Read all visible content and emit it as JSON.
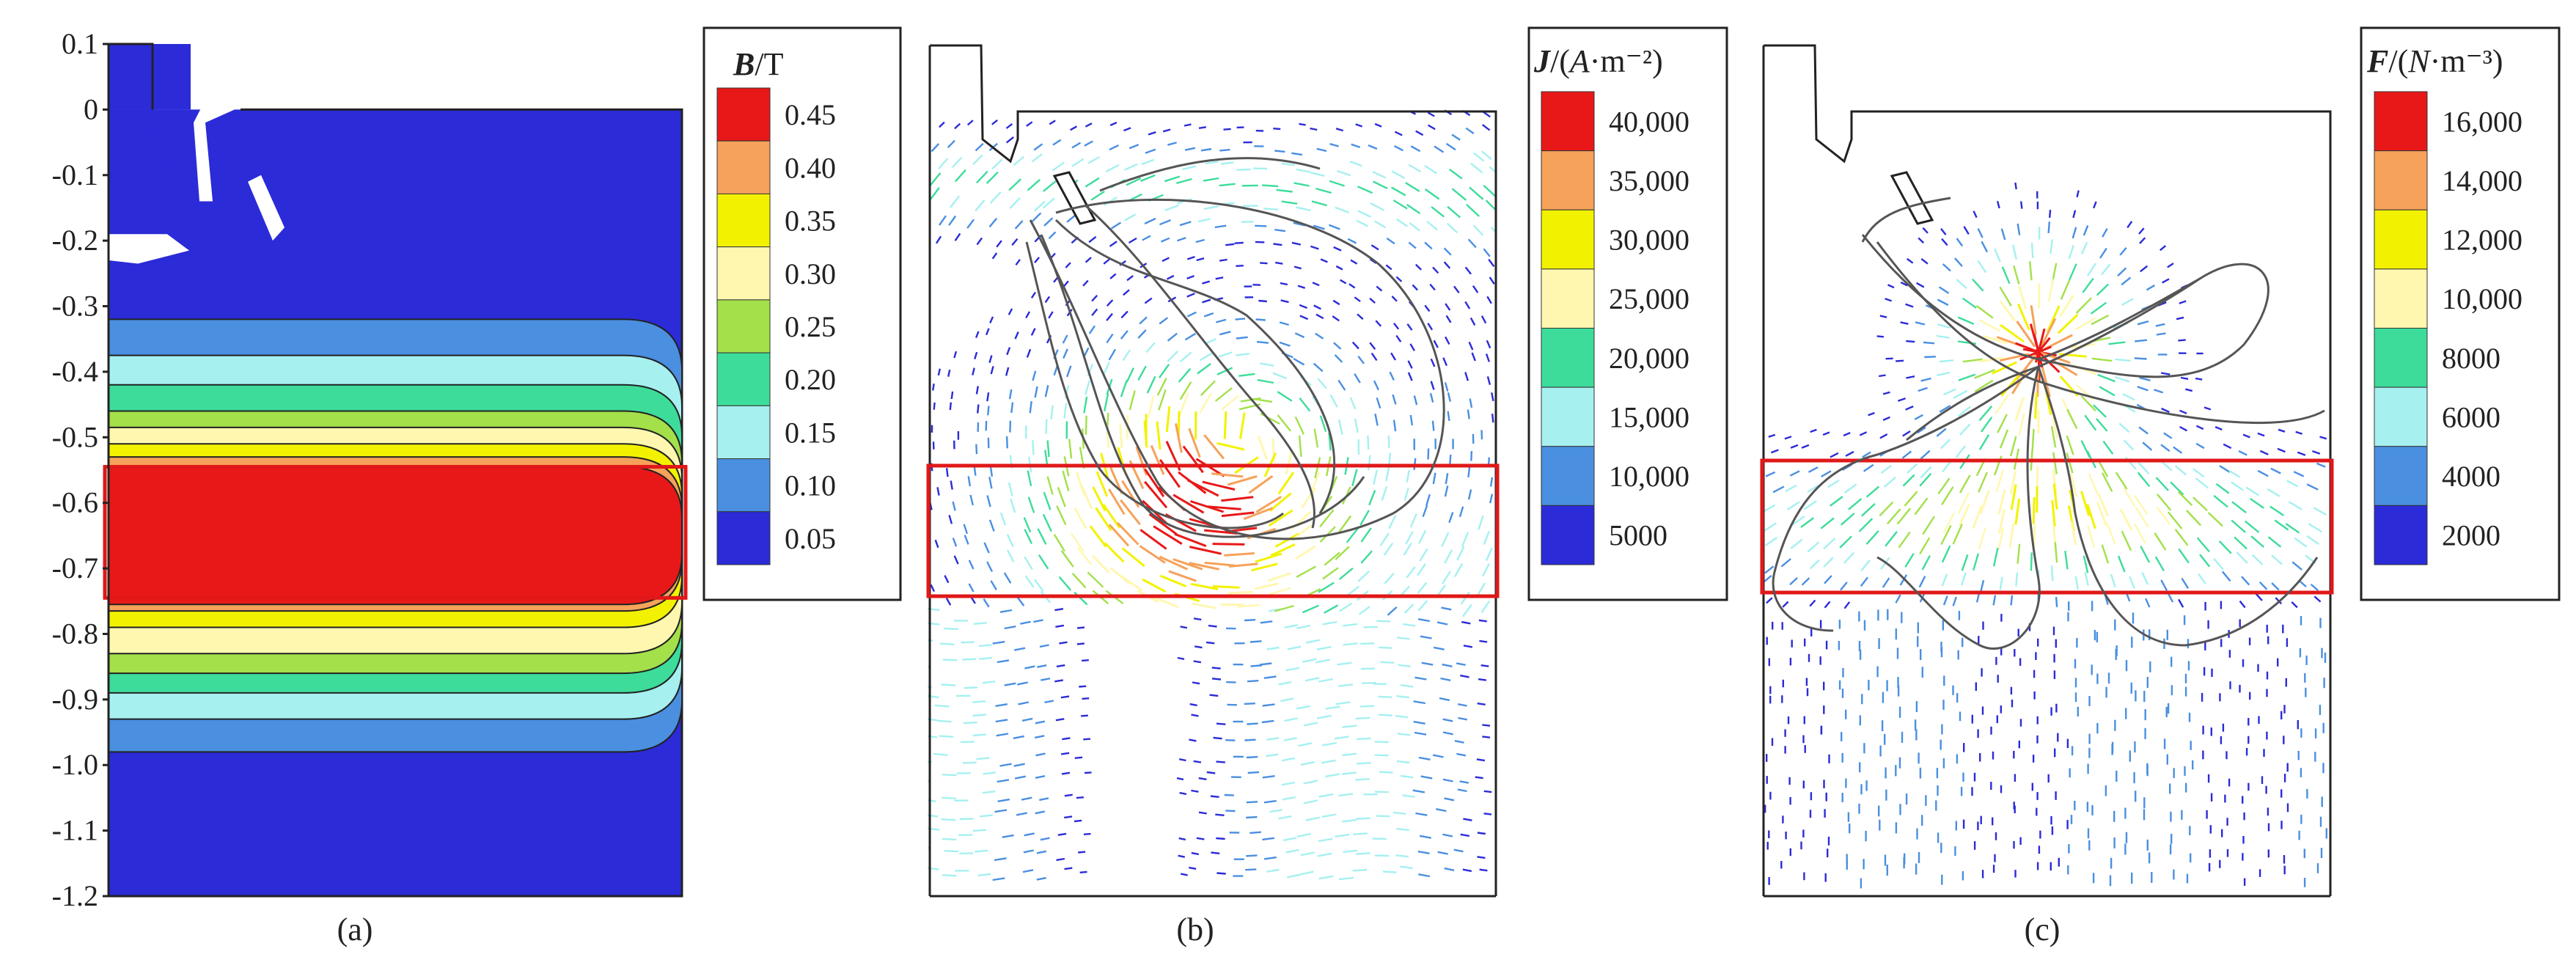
{
  "chart_data": [
    {
      "type": "heatmap",
      "panel_label": "(a)",
      "colorbar_title_var": "B",
      "colorbar_title_unit": "/T",
      "colorbar_ticks": [
        "0.45",
        "0.40",
        "0.35",
        "0.30",
        "0.25",
        "0.20",
        "0.15",
        "0.10",
        "0.05"
      ],
      "y_ticks": [
        "0.1",
        "0",
        "-0.1",
        "-0.2",
        "-0.3",
        "-0.4",
        "-0.5",
        "-0.6",
        "-0.7",
        "-0.8",
        "-0.9",
        "-1.0",
        "-1.1",
        "-1.2"
      ],
      "ylim": [
        -1.2,
        0.1
      ],
      "contour_levels": [
        0.05,
        0.1,
        0.15,
        0.2,
        0.25,
        0.3,
        0.35,
        0.4,
        0.45
      ],
      "highlight_band_y": [
        -0.545,
        -0.745
      ]
    },
    {
      "type": "vector-field",
      "panel_label": "(b)",
      "colorbar_title_var": "J",
      "colorbar_title_rest": "/(",
      "colorbar_title_var2": "A",
      "colorbar_title_unit": "·m⁻²)",
      "colorbar_ticks": [
        "40,000",
        "35,000",
        "30,000",
        "25,000",
        "20,000",
        "15,000",
        "10,000",
        "5000"
      ],
      "levels": [
        5000,
        10000,
        15000,
        20000,
        25000,
        30000,
        35000,
        40000
      ]
    },
    {
      "type": "vector-field",
      "panel_label": "(c)",
      "colorbar_title_var": "F",
      "colorbar_title_rest": "/(",
      "colorbar_title_var2": "N",
      "colorbar_title_unit": "·m⁻³)",
      "colorbar_ticks": [
        "16,000",
        "14,000",
        "12,000",
        "10,000",
        "8000",
        "6000",
        "4000",
        "2000"
      ],
      "levels": [
        2000,
        4000,
        6000,
        8000,
        10000,
        12000,
        14000,
        16000
      ]
    }
  ],
  "colors": {
    "scale": [
      "#2b2bd8",
      "#4a8fe0",
      "#a6f0f0",
      "#3ddc9a",
      "#a3e04a",
      "#fff7b0",
      "#f2f200",
      "#f6a25a",
      "#e81818"
    ],
    "band": "#e01818",
    "line": "#555555"
  }
}
